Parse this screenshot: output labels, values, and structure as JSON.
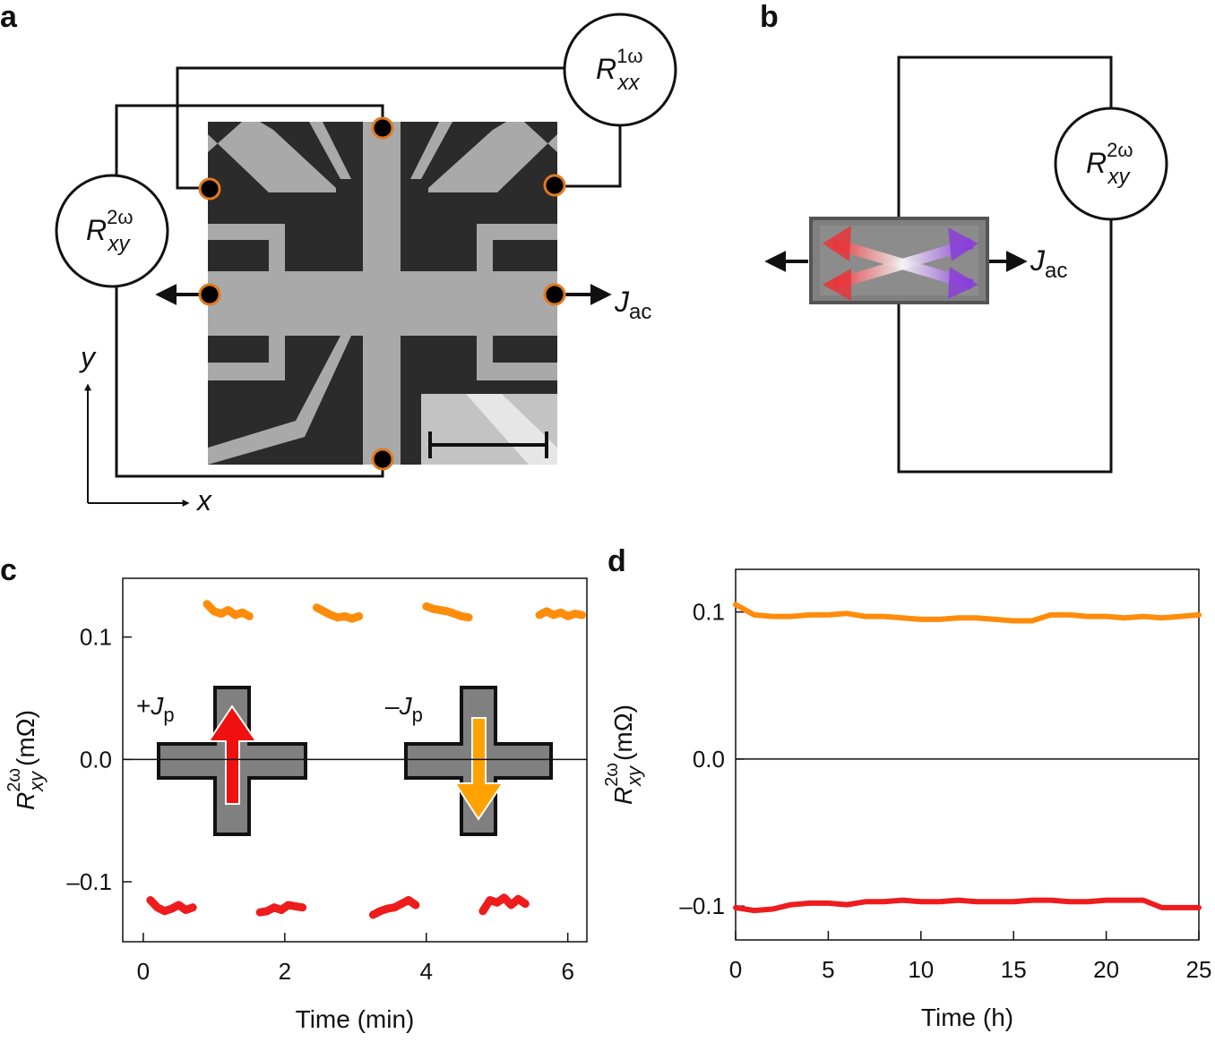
{
  "panels": {
    "a": {
      "label": "a",
      "meter_xx": {
        "symbol": "R",
        "sup": "1ω",
        "sub": "xx"
      },
      "meter_xy": {
        "symbol": "R",
        "sup": "2ω",
        "sub": "xy"
      },
      "current": {
        "symbol": "J",
        "sub": "ac"
      },
      "axis_x": "x",
      "axis_y": "y"
    },
    "b": {
      "label": "b",
      "meter_xy": {
        "symbol": "R",
        "sup": "2ω",
        "sub": "xy"
      },
      "current": {
        "symbol": "J",
        "sub": "ac"
      }
    }
  },
  "chart_data": [
    {
      "type": "line",
      "label": "c",
      "x_label": "Time (min)",
      "y_label": {
        "symbol": "R",
        "sup": "2ω",
        "sub": "xy",
        "unit": "(mΩ)"
      },
      "annotations": [
        {
          "sign": "+",
          "symbol": "J",
          "sub": "p"
        },
        {
          "sign": "–",
          "symbol": "J",
          "sub": "p"
        }
      ],
      "xlim": [
        -0.29,
        6.27
      ],
      "xticks": [
        0,
        2,
        4,
        6
      ],
      "ylim": [
        -0.149,
        0.148
      ],
      "yticks": [
        {
          "value": -0.1,
          "label": "–0.1"
        },
        {
          "value": 0,
          "label": "0.0"
        },
        0.1
      ],
      "series": [
        {
          "color": "#ff8c0a",
          "x": [
            0.9,
            1.0,
            1.1,
            1.2,
            1.3,
            1.4,
            1.5,
            2.0,
            2.45,
            2.55,
            2.65,
            2.75,
            2.85,
            2.95,
            3.05,
            3.5,
            4.0,
            4.1,
            4.2,
            4.3,
            4.4,
            4.5,
            4.6,
            5.0,
            5.6,
            5.7,
            5.8,
            5.9,
            6.0,
            6.1,
            6.2
          ],
          "values": [
            0.127,
            0.121,
            0.119,
            0.122,
            0.118,
            0.12,
            0.117,
            null,
            0.124,
            0.121,
            0.118,
            0.116,
            0.117,
            0.115,
            0.117,
            null,
            0.125,
            0.123,
            0.122,
            0.121,
            0.119,
            0.117,
            0.116,
            null,
            0.118,
            0.121,
            0.118,
            0.12,
            0.117,
            0.119,
            0.118
          ]
        },
        {
          "color": "#ee1c1c",
          "x": [
            0.1,
            0.2,
            0.3,
            0.4,
            0.5,
            0.6,
            0.7,
            1.2,
            1.65,
            1.75,
            1.85,
            1.95,
            2.05,
            2.15,
            2.25,
            2.8,
            3.25,
            3.35,
            3.45,
            3.55,
            3.65,
            3.75,
            3.85,
            4.3,
            4.8,
            4.9,
            5.0,
            5.1,
            5.2,
            5.3,
            5.4
          ],
          "values": [
            -0.115,
            -0.121,
            -0.124,
            -0.122,
            -0.119,
            -0.123,
            -0.121,
            null,
            -0.125,
            -0.124,
            -0.121,
            -0.123,
            -0.119,
            -0.12,
            -0.121,
            null,
            -0.127,
            -0.124,
            -0.122,
            -0.121,
            -0.118,
            -0.115,
            -0.119,
            null,
            -0.124,
            -0.115,
            -0.117,
            -0.113,
            -0.119,
            -0.114,
            -0.118
          ]
        }
      ]
    },
    {
      "type": "line",
      "label": "d",
      "x_label": "Time (h)",
      "y_label": {
        "symbol": "R",
        "sup": "2ω",
        "sub": "xy",
        "unit": "(mΩ)"
      },
      "xlim": [
        0,
        25
      ],
      "xticks": [
        0,
        5,
        10,
        15,
        20,
        25
      ],
      "ylim": [
        -0.123,
        0.129
      ],
      "yticks": [
        {
          "value": -0.1,
          "label": "–0.1"
        },
        {
          "value": 0,
          "label": "0.0"
        },
        0.1
      ],
      "series": [
        {
          "color": "#ff8c0a",
          "x": [
            0,
            1,
            2,
            3,
            4,
            5,
            6,
            7,
            8,
            9,
            10,
            11,
            12,
            13,
            14,
            15,
            16,
            17,
            18,
            19,
            20,
            21,
            22,
            23,
            24,
            25
          ],
          "values": [
            0.105,
            0.098,
            0.097,
            0.097,
            0.098,
            0.098,
            0.099,
            0.097,
            0.097,
            0.096,
            0.095,
            0.095,
            0.096,
            0.096,
            0.095,
            0.094,
            0.094,
            0.098,
            0.098,
            0.097,
            0.097,
            0.096,
            0.097,
            0.096,
            0.097,
            0.098
          ]
        },
        {
          "color": "#ee1c1c",
          "x": [
            0,
            1,
            2,
            3,
            4,
            5,
            6,
            7,
            8,
            9,
            10,
            11,
            12,
            13,
            14,
            15,
            16,
            17,
            18,
            19,
            20,
            21,
            22,
            23,
            24,
            25
          ],
          "values": [
            -0.101,
            -0.103,
            -0.102,
            -0.099,
            -0.098,
            -0.098,
            -0.099,
            -0.097,
            -0.097,
            -0.096,
            -0.097,
            -0.097,
            -0.096,
            -0.097,
            -0.097,
            -0.097,
            -0.096,
            -0.096,
            -0.097,
            -0.097,
            -0.096,
            -0.096,
            -0.096,
            -0.101,
            -0.101,
            -0.101
          ]
        }
      ]
    }
  ]
}
